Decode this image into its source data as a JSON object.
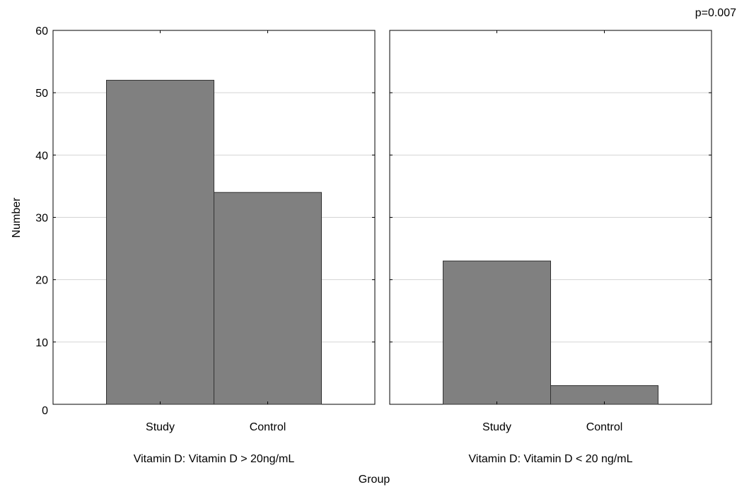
{
  "chart_data": {
    "type": "bar",
    "annotation": "p=0.007",
    "ylabel": "Number",
    "xlabel": "Group",
    "ylim": [
      0,
      60
    ],
    "yticks": [
      0,
      10,
      20,
      30,
      40,
      50,
      60
    ],
    "grid": true,
    "bar_color": "#808080",
    "categories": [
      "Study",
      "Control"
    ],
    "panels": [
      {
        "label": "Vitamin D: Vitamin D > 20ng/mL",
        "values": [
          52,
          34
        ]
      },
      {
        "label": "Vitamin D: Vitamin D < 20 ng/mL",
        "values": [
          23,
          3
        ]
      }
    ]
  }
}
